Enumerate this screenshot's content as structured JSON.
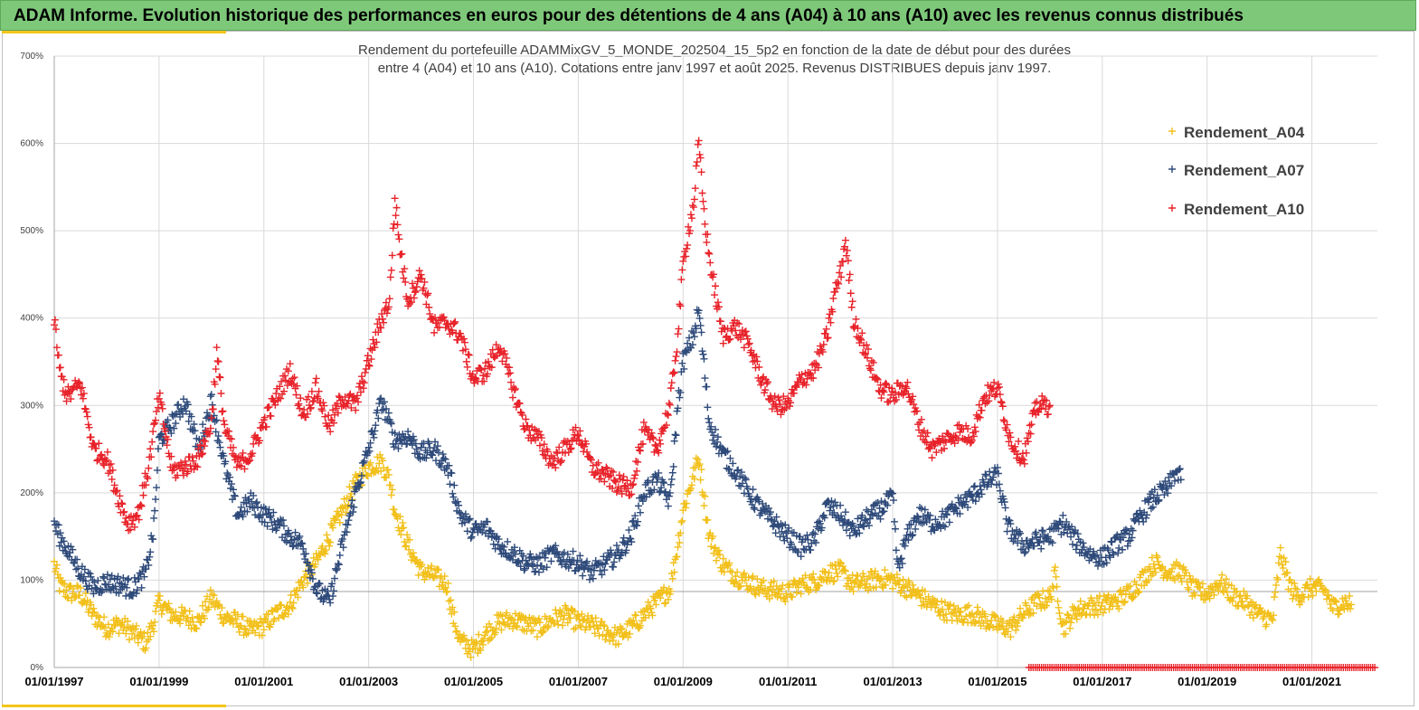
{
  "header": {
    "title": "ADAM Informe. Evolution historique des performances en euros pour des détentions de 4 ans (A04) à 10 ans (A10) avec les revenus connus distribués"
  },
  "chart_data": {
    "type": "scatter",
    "title_line1": "Rendement du portefeuille ADAMMixGV_5_MONDE_202504_15_5p2 en fonction de la date de début pour des durées",
    "title_line2": "entre 4 (A04) et 10 ans (A10). Cotations entre janv 1997 et août 2025. Revenus DISTRIBUES depuis janv 1997.",
    "xlabel": "",
    "ylabel": "",
    "x_range": [
      "01/01/1997",
      "01/07/2022"
    ],
    "ylim": [
      0,
      700
    ],
    "y_ticks": [
      "0%",
      "100%",
      "200%",
      "300%",
      "400%",
      "500%",
      "600%",
      "700%"
    ],
    "x_ticks": [
      "01/01/1997",
      "01/01/1999",
      "01/01/2001",
      "01/01/2003",
      "01/01/2005",
      "01/01/2007",
      "01/01/2009",
      "01/01/2011",
      "01/01/2013",
      "01/01/2015",
      "01/01/2017",
      "01/01/2019",
      "01/01/2021"
    ],
    "grid": true,
    "legend_position": "top-right",
    "reference_line_y": 87,
    "marker": "+",
    "series": [
      {
        "name": "Rendement_A04",
        "color": "#f2c01b",
        "points": [
          [
            1997.0,
            118
          ],
          [
            1997.1,
            95
          ],
          [
            1997.25,
            86
          ],
          [
            1997.5,
            84
          ],
          [
            1997.75,
            60
          ],
          [
            1998.0,
            45
          ],
          [
            1998.25,
            50
          ],
          [
            1998.5,
            40
          ],
          [
            1998.75,
            28
          ],
          [
            1998.9,
            52
          ],
          [
            1999.0,
            75
          ],
          [
            1999.25,
            60
          ],
          [
            1999.5,
            58
          ],
          [
            1999.75,
            52
          ],
          [
            2000.0,
            80
          ],
          [
            2000.25,
            58
          ],
          [
            2000.5,
            52
          ],
          [
            2000.75,
            42
          ],
          [
            2001.0,
            48
          ],
          [
            2001.25,
            62
          ],
          [
            2001.5,
            72
          ],
          [
            2001.75,
            100
          ],
          [
            2002.0,
            120
          ],
          [
            2002.25,
            150
          ],
          [
            2002.5,
            180
          ],
          [
            2002.75,
            210
          ],
          [
            2003.0,
            230
          ],
          [
            2003.25,
            235
          ],
          [
            2003.4,
            215
          ],
          [
            2003.5,
            180
          ],
          [
            2003.75,
            140
          ],
          [
            2004.0,
            110
          ],
          [
            2004.25,
            105
          ],
          [
            2004.5,
            95
          ],
          [
            2004.6,
            60
          ],
          [
            2004.75,
            30
          ],
          [
            2005.0,
            20
          ],
          [
            2005.25,
            40
          ],
          [
            2005.5,
            52
          ],
          [
            2005.75,
            55
          ],
          [
            2006.0,
            50
          ],
          [
            2006.25,
            45
          ],
          [
            2006.5,
            55
          ],
          [
            2006.75,
            60
          ],
          [
            2007.0,
            52
          ],
          [
            2007.25,
            48
          ],
          [
            2007.5,
            42
          ],
          [
            2007.75,
            35
          ],
          [
            2008.0,
            45
          ],
          [
            2008.25,
            60
          ],
          [
            2008.5,
            75
          ],
          [
            2008.75,
            90
          ],
          [
            2008.9,
            140
          ],
          [
            2009.0,
            180
          ],
          [
            2009.2,
            220
          ],
          [
            2009.3,
            240
          ],
          [
            2009.5,
            150
          ],
          [
            2009.75,
            118
          ],
          [
            2010.0,
            105
          ],
          [
            2010.25,
            98
          ],
          [
            2010.5,
            90
          ],
          [
            2010.75,
            88
          ],
          [
            2011.0,
            85
          ],
          [
            2011.25,
            95
          ],
          [
            2011.5,
            98
          ],
          [
            2011.75,
            108
          ],
          [
            2012.0,
            110
          ],
          [
            2012.25,
            95
          ],
          [
            2012.5,
            98
          ],
          [
            2012.75,
            102
          ],
          [
            2013.0,
            100
          ],
          [
            2013.25,
            92
          ],
          [
            2013.5,
            82
          ],
          [
            2013.75,
            72
          ],
          [
            2014.0,
            65
          ],
          [
            2014.25,
            60
          ],
          [
            2014.5,
            62
          ],
          [
            2014.75,
            55
          ],
          [
            2015.0,
            48
          ],
          [
            2015.25,
            45
          ],
          [
            2015.5,
            62
          ],
          [
            2015.75,
            75
          ],
          [
            2016.0,
            80
          ],
          [
            2016.1,
            105
          ],
          [
            2016.25,
            45
          ],
          [
            2016.5,
            65
          ],
          [
            2016.75,
            70
          ],
          [
            2017.0,
            72
          ],
          [
            2017.25,
            75
          ],
          [
            2017.5,
            85
          ],
          [
            2017.75,
            100
          ],
          [
            2018.0,
            120
          ],
          [
            2018.25,
            110
          ],
          [
            2018.5,
            110
          ],
          [
            2018.75,
            88
          ],
          [
            2019.0,
            85
          ],
          [
            2019.25,
            98
          ],
          [
            2019.5,
            82
          ],
          [
            2019.75,
            75
          ],
          [
            2020.0,
            60
          ],
          [
            2020.25,
            55
          ],
          [
            2020.4,
            130
          ],
          [
            2020.6,
            90
          ],
          [
            2020.75,
            82
          ],
          [
            2021.0,
            92
          ],
          [
            2021.25,
            88
          ],
          [
            2021.4,
            68
          ],
          [
            2021.6,
            75
          ],
          [
            2021.75,
            72
          ]
        ]
      },
      {
        "name": "Rendement_A07",
        "color": "#2e4a7a",
        "points": [
          [
            1997.0,
            165
          ],
          [
            1997.1,
            150
          ],
          [
            1997.25,
            135
          ],
          [
            1997.5,
            110
          ],
          [
            1997.75,
            92
          ],
          [
            1998.0,
            98
          ],
          [
            1998.25,
            95
          ],
          [
            1998.5,
            90
          ],
          [
            1998.75,
            108
          ],
          [
            1998.9,
            160
          ],
          [
            1999.0,
            260
          ],
          [
            1999.25,
            280
          ],
          [
            1999.5,
            305
          ],
          [
            1999.75,
            250
          ],
          [
            2000.0,
            305
          ],
          [
            2000.25,
            230
          ],
          [
            2000.5,
            175
          ],
          [
            2000.75,
            190
          ],
          [
            2001.0,
            175
          ],
          [
            2001.25,
            165
          ],
          [
            2001.5,
            150
          ],
          [
            2001.75,
            140
          ],
          [
            2002.0,
            90
          ],
          [
            2002.25,
            75
          ],
          [
            2002.5,
            140
          ],
          [
            2002.75,
            200
          ],
          [
            2003.0,
            250
          ],
          [
            2003.25,
            305
          ],
          [
            2003.5,
            260
          ],
          [
            2003.75,
            265
          ],
          [
            2004.0,
            245
          ],
          [
            2004.25,
            250
          ],
          [
            2004.5,
            230
          ],
          [
            2004.75,
            175
          ],
          [
            2005.0,
            155
          ],
          [
            2005.25,
            160
          ],
          [
            2005.5,
            140
          ],
          [
            2005.75,
            132
          ],
          [
            2006.0,
            120
          ],
          [
            2006.25,
            118
          ],
          [
            2006.5,
            130
          ],
          [
            2006.75,
            125
          ],
          [
            2007.0,
            120
          ],
          [
            2007.25,
            108
          ],
          [
            2007.5,
            118
          ],
          [
            2007.75,
            130
          ],
          [
            2008.0,
            150
          ],
          [
            2008.25,
            200
          ],
          [
            2008.5,
            215
          ],
          [
            2008.75,
            190
          ],
          [
            2008.9,
            300
          ],
          [
            2009.0,
            350
          ],
          [
            2009.2,
            380
          ],
          [
            2009.3,
            410
          ],
          [
            2009.5,
            280
          ],
          [
            2009.75,
            245
          ],
          [
            2010.0,
            225
          ],
          [
            2010.25,
            200
          ],
          [
            2010.5,
            180
          ],
          [
            2010.75,
            165
          ],
          [
            2011.0,
            150
          ],
          [
            2011.25,
            138
          ],
          [
            2011.5,
            145
          ],
          [
            2011.75,
            185
          ],
          [
            2012.0,
            175
          ],
          [
            2012.25,
            155
          ],
          [
            2012.5,
            170
          ],
          [
            2012.75,
            180
          ],
          [
            2013.0,
            195
          ],
          [
            2013.1,
            110
          ],
          [
            2013.25,
            145
          ],
          [
            2013.5,
            175
          ],
          [
            2013.75,
            165
          ],
          [
            2014.0,
            170
          ],
          [
            2014.25,
            185
          ],
          [
            2014.5,
            195
          ],
          [
            2014.75,
            210
          ],
          [
            2015.0,
            220
          ],
          [
            2015.2,
            160
          ],
          [
            2015.5,
            140
          ],
          [
            2015.75,
            145
          ],
          [
            2016.0,
            150
          ],
          [
            2016.25,
            165
          ],
          [
            2016.5,
            145
          ],
          [
            2016.75,
            130
          ],
          [
            2017.0,
            125
          ],
          [
            2017.25,
            140
          ],
          [
            2017.5,
            150
          ],
          [
            2017.75,
            175
          ],
          [
            2018.0,
            195
          ],
          [
            2018.25,
            205
          ],
          [
            2018.4,
            225
          ],
          [
            2018.5,
            215
          ]
        ]
      },
      {
        "name": "Rendement_A10",
        "color": "#e8232a",
        "points": [
          [
            1997.0,
            400
          ],
          [
            1997.1,
            340
          ],
          [
            1997.25,
            310
          ],
          [
            1997.5,
            325
          ],
          [
            1997.75,
            250
          ],
          [
            1998.0,
            240
          ],
          [
            1998.2,
            200
          ],
          [
            1998.4,
            165
          ],
          [
            1998.6,
            175
          ],
          [
            1998.8,
            230
          ],
          [
            1999.0,
            310
          ],
          [
            1999.25,
            225
          ],
          [
            1999.5,
            230
          ],
          [
            1999.75,
            240
          ],
          [
            2000.0,
            280
          ],
          [
            2000.1,
            360
          ],
          [
            2000.25,
            275
          ],
          [
            2000.5,
            230
          ],
          [
            2000.75,
            245
          ],
          [
            2001.0,
            280
          ],
          [
            2001.25,
            310
          ],
          [
            2001.5,
            340
          ],
          [
            2001.75,
            290
          ],
          [
            2002.0,
            320
          ],
          [
            2002.25,
            275
          ],
          [
            2002.5,
            310
          ],
          [
            2002.75,
            300
          ],
          [
            2003.0,
            350
          ],
          [
            2003.25,
            400
          ],
          [
            2003.4,
            420
          ],
          [
            2003.5,
            535
          ],
          [
            2003.6,
            480
          ],
          [
            2003.75,
            420
          ],
          [
            2004.0,
            450
          ],
          [
            2004.25,
            390
          ],
          [
            2004.5,
            395
          ],
          [
            2004.75,
            380
          ],
          [
            2005.0,
            330
          ],
          [
            2005.25,
            340
          ],
          [
            2005.5,
            370
          ],
          [
            2005.75,
            320
          ],
          [
            2006.0,
            275
          ],
          [
            2006.25,
            260
          ],
          [
            2006.5,
            235
          ],
          [
            2006.75,
            250
          ],
          [
            2007.0,
            270
          ],
          [
            2007.25,
            230
          ],
          [
            2007.5,
            220
          ],
          [
            2007.75,
            210
          ],
          [
            2008.0,
            205
          ],
          [
            2008.25,
            270
          ],
          [
            2008.5,
            250
          ],
          [
            2008.75,
            300
          ],
          [
            2008.9,
            380
          ],
          [
            2009.0,
            460
          ],
          [
            2009.1,
            500
          ],
          [
            2009.2,
            530
          ],
          [
            2009.3,
            600
          ],
          [
            2009.4,
            520
          ],
          [
            2009.5,
            470
          ],
          [
            2009.75,
            380
          ],
          [
            2010.0,
            390
          ],
          [
            2010.25,
            370
          ],
          [
            2010.5,
            330
          ],
          [
            2010.75,
            300
          ],
          [
            2011.0,
            300
          ],
          [
            2011.25,
            330
          ],
          [
            2011.5,
            340
          ],
          [
            2011.75,
            380
          ],
          [
            2011.9,
            430
          ],
          [
            2012.0,
            450
          ],
          [
            2012.1,
            490
          ],
          [
            2012.25,
            400
          ],
          [
            2012.5,
            360
          ],
          [
            2012.75,
            320
          ],
          [
            2013.0,
            310
          ],
          [
            2013.25,
            325
          ],
          [
            2013.5,
            280
          ],
          [
            2013.75,
            250
          ],
          [
            2014.0,
            260
          ],
          [
            2014.25,
            270
          ],
          [
            2014.5,
            265
          ],
          [
            2014.75,
            310
          ],
          [
            2015.0,
            320
          ],
          [
            2015.25,
            260
          ],
          [
            2015.5,
            240
          ],
          [
            2015.75,
            300
          ],
          [
            2016.0,
            300
          ]
        ]
      },
      {
        "name": "Rendement_A10",
        "color": "#e8232a",
        "baseline_from": "2015.6",
        "baseline_to": "2022.2",
        "baseline_value": 0
      }
    ]
  }
}
